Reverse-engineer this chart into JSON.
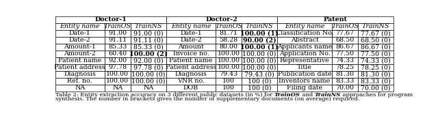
{
  "group_headers": [
    "Doctor-1",
    "Doctor-2",
    "Patent"
  ],
  "col_headers": [
    "Entity name",
    "TrainOS",
    "TrainNS",
    "Entity name",
    "TrainOS",
    "TrainNS",
    "Entity name",
    "TrainOS",
    "TrainNS"
  ],
  "rows": [
    [
      "Date-1",
      "91.00",
      "91.00 (0)",
      "Date-1",
      "81.71",
      "100.00 (1)",
      "Classification No.",
      "77.67",
      "77.67 (0)"
    ],
    [
      "Date-2",
      "91.11",
      "91.11 (0)",
      "Date-2",
      "58.28",
      "90.00 (2)",
      "Abstract",
      "68.50",
      "68.50 (0)"
    ],
    [
      "Amount-1",
      "85.33",
      "85.33 (0)",
      "Amount",
      "80.00",
      "100.00 (1)",
      "Applicants name",
      "86.67",
      "86.67 (0)"
    ],
    [
      "Amount-2",
      "60.40",
      "100.00 (2)",
      "Invoice no.",
      "100.00",
      "100.00 (0)",
      "Application No.",
      "77.50",
      "77.50 (0)"
    ],
    [
      "Patient name",
      "92.00",
      "92.00 (0)",
      "Patient name",
      "100.00",
      "100.00 (0)",
      "Representative",
      "74.33",
      "74.33 (0)"
    ],
    [
      "Patient address",
      "97.78",
      "97.78 (0)",
      "Patient address",
      "100.00",
      "100.00 (0)",
      "Title",
      "78.25",
      "78.25 (0)"
    ],
    [
      "Diagnosis",
      "100.00",
      "100.00 (0)",
      "Diagnosis",
      "79.43",
      "79.43 (0)",
      "Publication date",
      "81.30",
      "81.30 (0)"
    ],
    [
      "Ref. no.",
      "100.00",
      "100.00 (0)",
      "VNR no.",
      "100",
      "100 (0)",
      "Inventors name",
      "83.33",
      "83.33 (0)"
    ],
    [
      "NA",
      "NA",
      "NA",
      "DOB",
      "100",
      "100 (0)",
      "Filing date",
      "70.00",
      "70.00 (0)"
    ]
  ],
  "bold_trainOS": [
    [
      true,
      false,
      false,
      false,
      false,
      false,
      false,
      false,
      false
    ],
    [
      true,
      false,
      false,
      false,
      false,
      false,
      true,
      false,
      false
    ],
    [
      true,
      false,
      false,
      false,
      false,
      false,
      true,
      false,
      false
    ],
    [
      false,
      false,
      false,
      true,
      false,
      false,
      true,
      false,
      false
    ],
    [
      true,
      false,
      false,
      true,
      false,
      false,
      true,
      false,
      false
    ],
    [
      true,
      false,
      false,
      true,
      false,
      false,
      true,
      false,
      false
    ],
    [
      true,
      false,
      false,
      false,
      false,
      false,
      true,
      false,
      false
    ],
    [
      true,
      false,
      false,
      true,
      false,
      false,
      true,
      false,
      false
    ],
    [
      false,
      false,
      false,
      true,
      false,
      false,
      true,
      false,
      false
    ]
  ],
  "bold_trainNS": [
    [
      false,
      false,
      false,
      false,
      true,
      false,
      false,
      false,
      false
    ],
    [
      false,
      false,
      false,
      false,
      true,
      false,
      false,
      false,
      false
    ],
    [
      false,
      false,
      false,
      false,
      true,
      false,
      false,
      false,
      false
    ],
    [
      false,
      true,
      false,
      false,
      false,
      false,
      false,
      false,
      false
    ],
    [
      false,
      false,
      false,
      false,
      false,
      false,
      false,
      false,
      false
    ],
    [
      false,
      false,
      false,
      false,
      false,
      false,
      false,
      false,
      false
    ],
    [
      false,
      false,
      false,
      false,
      false,
      false,
      false,
      false,
      false
    ],
    [
      false,
      false,
      false,
      false,
      false,
      false,
      false,
      false,
      false
    ],
    [
      false,
      false,
      false,
      false,
      false,
      false,
      false,
      false,
      false
    ]
  ],
  "col_widths_ratio": [
    72,
    38,
    52,
    72,
    38,
    52,
    80,
    38,
    52
  ],
  "font_size": 6.8,
  "caption_font_size": 6.0,
  "border_lw": 0.5
}
